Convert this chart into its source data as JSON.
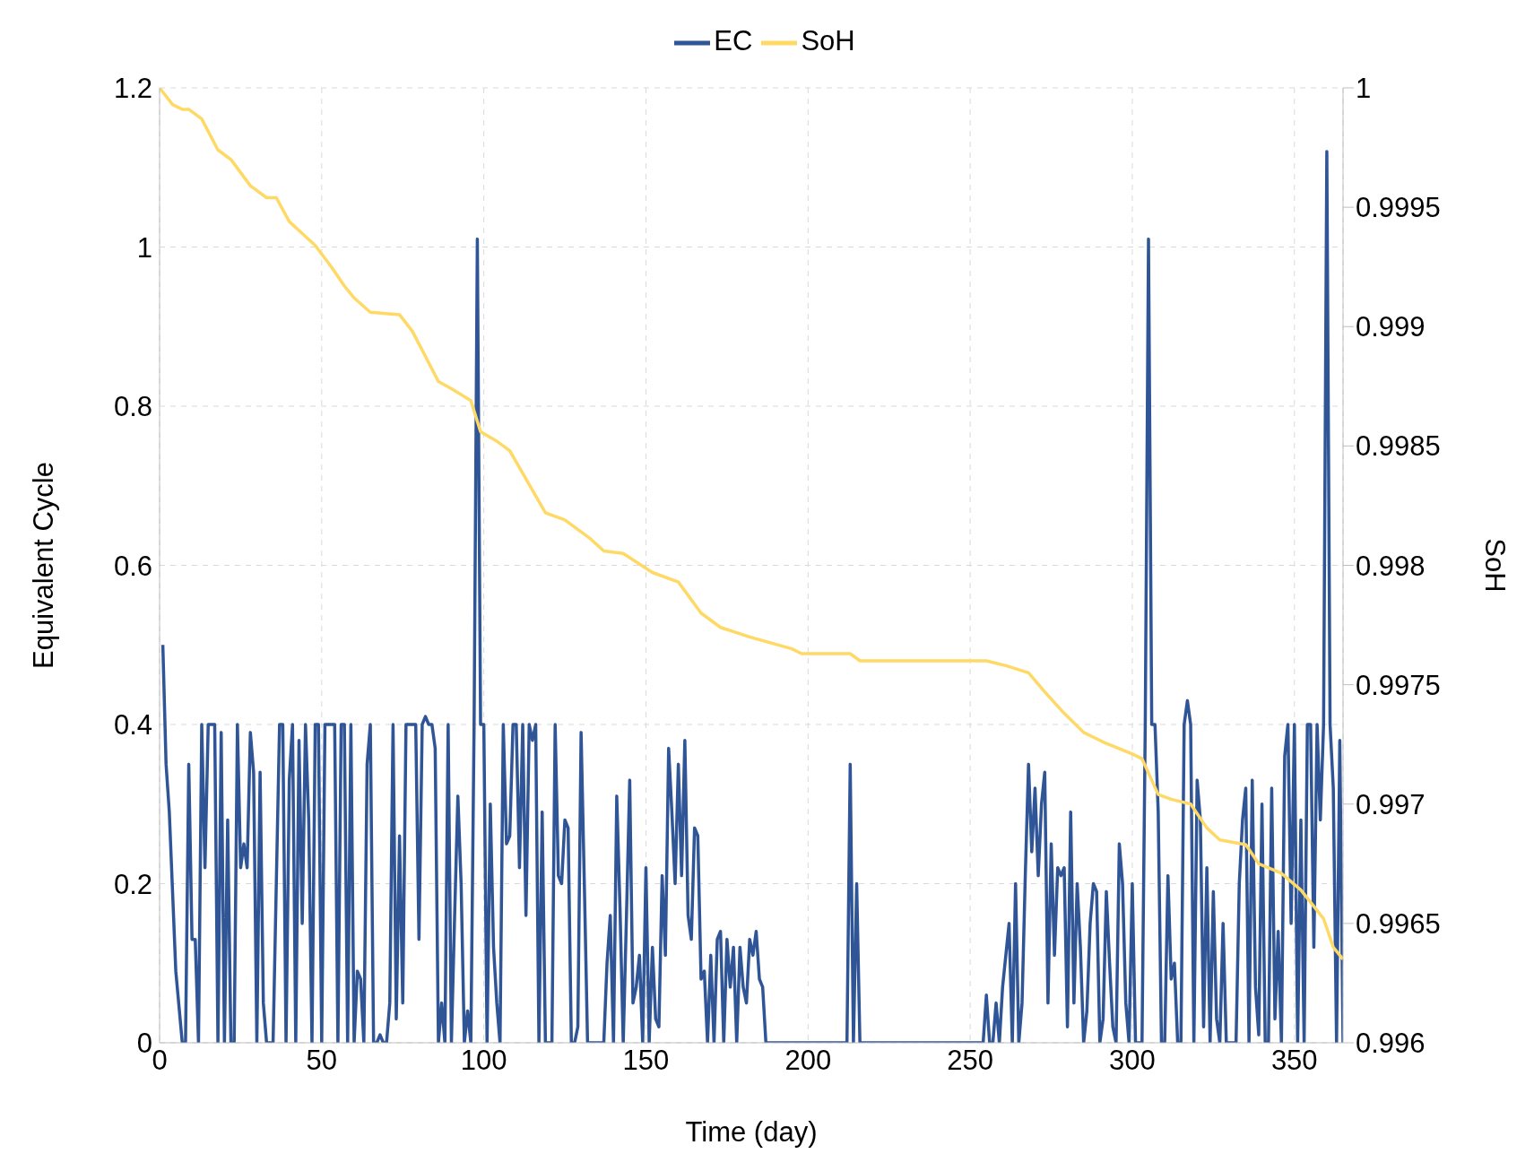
{
  "chart_data": {
    "type": "line",
    "xlabel": "Time (day)",
    "ylabel": "Equivalent Cycle",
    "y2label": "SoH",
    "xlim": [
      0,
      365
    ],
    "xticks": [
      0,
      50,
      100,
      150,
      200,
      250,
      300,
      350
    ],
    "ylim": [
      0,
      1.2
    ],
    "yticks": [
      0,
      0.2,
      0.4,
      0.6,
      0.8,
      1,
      1.2
    ],
    "y2lim": [
      0.996,
      1
    ],
    "y2ticks": [
      0.996,
      0.9965,
      0.997,
      0.9975,
      0.998,
      0.9985,
      0.999,
      0.9995,
      1
    ],
    "grid": true,
    "legend": "top",
    "marker": "none",
    "line_style": "solid",
    "series": [
      {
        "name": "EC",
        "color": "#2f5597",
        "x": [
          1,
          2,
          3,
          5,
          7,
          8,
          9,
          10,
          11,
          12,
          13,
          14,
          15,
          16,
          17,
          18,
          19,
          20,
          21,
          22,
          23,
          24,
          25,
          26,
          27,
          28,
          29,
          30,
          31,
          32,
          33,
          35,
          37,
          38,
          39,
          40,
          41,
          42,
          43,
          44,
          45,
          46,
          47,
          48,
          49,
          50,
          51,
          52,
          53,
          54,
          55,
          56,
          57,
          58,
          59,
          60,
          61,
          62,
          63,
          64,
          65,
          66,
          67,
          68,
          69,
          70,
          71,
          72,
          73,
          74,
          75,
          76,
          77,
          78,
          79,
          80,
          81,
          82,
          83,
          84,
          85,
          86,
          87,
          88,
          89,
          90,
          91,
          92,
          93,
          94,
          95,
          96,
          97,
          98,
          99,
          100,
          101,
          102,
          103,
          104,
          105,
          106,
          107,
          108,
          109,
          110,
          111,
          112,
          113,
          114,
          115,
          116,
          117,
          118,
          119,
          121,
          122,
          123,
          124,
          125,
          126,
          127,
          128,
          129,
          130,
          131,
          132,
          137,
          138,
          139,
          140,
          141,
          142,
          143,
          144,
          145,
          146,
          147,
          148,
          149,
          150,
          151,
          152,
          153,
          154,
          155,
          156,
          157,
          158,
          159,
          160,
          161,
          162,
          163,
          164,
          165,
          166,
          167,
          168,
          169,
          170,
          171,
          172,
          173,
          174,
          175,
          176,
          177,
          178,
          179,
          180,
          181,
          182,
          183,
          184,
          185,
          186,
          187,
          212,
          213,
          214,
          215,
          216,
          254,
          255,
          256,
          257,
          258,
          259,
          260,
          261,
          262,
          263,
          264,
          265,
          266,
          267,
          268,
          269,
          270,
          271,
          272,
          273,
          274,
          275,
          276,
          277,
          278,
          279,
          280,
          281,
          282,
          283,
          284,
          285,
          286,
          287,
          288,
          289,
          290,
          291,
          292,
          293,
          294,
          295,
          296,
          297,
          298,
          299,
          300,
          301,
          303,
          304,
          305,
          306,
          307,
          308,
          309,
          310,
          311,
          312,
          313,
          314,
          315,
          316,
          317,
          318,
          319,
          320,
          321,
          322,
          323,
          324,
          325,
          326,
          327,
          328,
          329,
          332,
          333,
          334,
          335,
          336,
          337,
          338,
          339,
          340,
          341,
          342,
          343,
          344,
          345,
          346,
          347,
          348,
          349,
          350,
          351,
          352,
          353,
          354,
          355,
          356,
          357,
          358,
          359,
          360,
          361,
          362,
          363,
          364,
          365
        ],
        "values": [
          0.5,
          0.35,
          0.29,
          0.09,
          0,
          0,
          0.35,
          0.13,
          0.13,
          0,
          0.4,
          0.22,
          0.4,
          0.4,
          0.4,
          0,
          0.39,
          0,
          0.28,
          0,
          0,
          0.4,
          0.22,
          0.25,
          0.22,
          0.39,
          0.34,
          0,
          0.34,
          0.05,
          0,
          0,
          0.4,
          0.4,
          0,
          0.33,
          0.4,
          0,
          0.38,
          0.15,
          0.4,
          0.28,
          0,
          0.4,
          0.4,
          0,
          0.4,
          0.4,
          0.4,
          0.4,
          0,
          0.4,
          0.4,
          0,
          0.4,
          0,
          0.09,
          0.08,
          0,
          0.35,
          0.4,
          0,
          0,
          0.01,
          0,
          0,
          0.05,
          0.4,
          0.03,
          0.26,
          0.05,
          0.4,
          0.4,
          0.4,
          0.4,
          0.13,
          0.4,
          0.41,
          0.4,
          0.4,
          0.37,
          0,
          0.05,
          0,
          0.4,
          0,
          0.16,
          0.31,
          0.2,
          0,
          0.04,
          0,
          0.4,
          1.01,
          0.4,
          0.4,
          0,
          0.3,
          0.12,
          0.05,
          0,
          0.4,
          0.25,
          0.26,
          0.4,
          0.4,
          0.22,
          0.4,
          0.16,
          0.4,
          0.38,
          0.4,
          0,
          0.29,
          0,
          0,
          0.4,
          0.21,
          0.2,
          0.28,
          0.27,
          0,
          0,
          0.02,
          0.39,
          0.2,
          0,
          0,
          0.1,
          0.16,
          0,
          0.31,
          0.17,
          0,
          0.16,
          0.33,
          0.05,
          0.07,
          0.11,
          0,
          0.22,
          0,
          0.12,
          0.03,
          0.02,
          0.21,
          0.11,
          0.37,
          0.29,
          0.2,
          0.35,
          0.21,
          0.38,
          0.16,
          0.13,
          0.27,
          0.26,
          0.08,
          0.09,
          0,
          0.11,
          0,
          0.13,
          0.14,
          0,
          0.13,
          0.07,
          0.12,
          0,
          0.12,
          0.07,
          0.05,
          0.13,
          0.11,
          0.14,
          0.08,
          0.07,
          0,
          0,
          0.35,
          0,
          0.2,
          0,
          0,
          0.06,
          0,
          0,
          0.05,
          0,
          0.07,
          0.11,
          0.15,
          0,
          0.2,
          0,
          0.05,
          0.21,
          0.35,
          0.24,
          0.32,
          0.21,
          0.3,
          0.34,
          0.05,
          0.25,
          0.11,
          0.22,
          0.21,
          0.22,
          0.02,
          0.29,
          0.05,
          0.2,
          0.12,
          0,
          0.04,
          0.15,
          0.2,
          0.19,
          0,
          0.03,
          0.19,
          0.1,
          0.02,
          0,
          0.25,
          0.2,
          0.05,
          0,
          0.2,
          0,
          0,
          0.4,
          1.01,
          0.4,
          0.4,
          0.29,
          0,
          0,
          0.21,
          0.08,
          0.1,
          0,
          0,
          0.4,
          0.43,
          0.4,
          0,
          0.33,
          0.28,
          0.02,
          0.22,
          0,
          0.19,
          0.03,
          0,
          0.15,
          0,
          0,
          0.2,
          0.28,
          0.32,
          0,
          0.33,
          0.07,
          0.01,
          0.3,
          0,
          0,
          0.32,
          0.03,
          0.14,
          0,
          0.36,
          0.4,
          0.15,
          0.4,
          0,
          0.28,
          0,
          0.4,
          0.4,
          0.12,
          0.4,
          0.28,
          0.4,
          1.12,
          0.4,
          0.32,
          0,
          0.38,
          0
        ]
      },
      {
        "name": "SoH",
        "color": "#ffd966",
        "axis": "y2",
        "x": [
          0,
          4,
          7,
          9,
          13,
          18,
          22,
          28,
          33,
          36,
          40,
          48,
          53,
          57,
          60,
          65,
          74,
          78,
          86,
          90,
          96,
          99,
          104,
          108,
          119,
          125,
          133,
          137,
          143,
          152,
          160,
          167,
          173,
          182,
          195,
          198,
          213,
          216,
          255,
          261,
          268,
          273,
          279,
          285,
          291,
          300,
          303,
          305,
          308,
          312,
          318,
          323,
          327,
          335,
          339,
          346,
          352,
          359,
          362,
          365
        ],
        "values": [
          1,
          0.99993,
          0.99991,
          0.99991,
          0.99987,
          0.99974,
          0.9997,
          0.99959,
          0.99954,
          0.99954,
          0.99944,
          0.99934,
          0.99925,
          0.99917,
          0.99912,
          0.99906,
          0.99905,
          0.99898,
          0.99877,
          0.99874,
          0.99869,
          0.99856,
          0.99852,
          0.99848,
          0.99822,
          0.99819,
          0.99811,
          0.99806,
          0.99805,
          0.99797,
          0.99793,
          0.9978,
          0.99774,
          0.9977,
          0.99765,
          0.99763,
          0.99763,
          0.9976,
          0.9976,
          0.99758,
          0.99755,
          0.99747,
          0.99738,
          0.9973,
          0.99726,
          0.99721,
          0.99719,
          0.99713,
          0.99704,
          0.99702,
          0.997,
          0.9969,
          0.99685,
          0.99683,
          0.99675,
          0.99671,
          0.99664,
          0.99652,
          0.9964,
          0.99635
        ]
      }
    ]
  }
}
